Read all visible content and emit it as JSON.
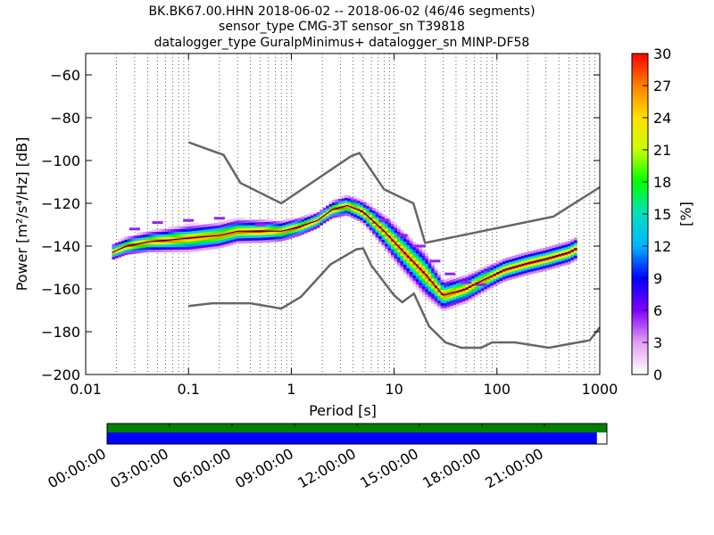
{
  "title_lines": [
    "BK.BK67.00.HHN   2018-06-02 -- 2018-06-02  (46/46 segments)",
    "sensor_type CMG-3T sensor_sn T39818",
    "datalogger_type GuralpMinimus+ datalogger_sn MINP-DF58"
  ],
  "chart_data": [
    {
      "type": "heatmap",
      "xlabel": "Period [s]",
      "ylabel": "Power [m²/s⁴/Hz] [dB]",
      "x_scale": "log",
      "xlim": [
        0.01,
        1000
      ],
      "ylim": [
        -200,
        -50
      ],
      "x_tick_values": [
        0.01,
        0.1,
        1,
        10,
        100,
        1000
      ],
      "x_tick_labels": [
        "0.01",
        "0.1",
        "1",
        "10",
        "100",
        "1000"
      ],
      "y_ticks": [
        -200,
        -180,
        -160,
        -140,
        -120,
        -100,
        -80,
        -60
      ],
      "grid": "dotted vertical",
      "colorbar": {
        "label": "[%]",
        "min": 0,
        "max": 30,
        "ticks": [
          0,
          3,
          6,
          9,
          12,
          15,
          18,
          21,
          24,
          27,
          30
        ],
        "colormap": "pqlx"
      },
      "reference_curves": [
        {
          "name": "upper",
          "color": "#666666",
          "points": [
            [
              0.1,
              -91.5
            ],
            [
              0.22,
              -97.4
            ],
            [
              0.32,
              -110.5
            ],
            [
              0.8,
              -120.0
            ],
            [
              3.8,
              -98.0
            ],
            [
              4.6,
              -96.5
            ],
            [
              8,
              -113.5
            ],
            [
              15.4,
              -120.0
            ],
            [
              20,
              -138.5
            ],
            [
              354,
              -126.2
            ],
            [
              1000,
              -112.5
            ]
          ]
        },
        {
          "name": "lower",
          "color": "#666666",
          "points": [
            [
              0.1,
              -168.0
            ],
            [
              0.17,
              -166.7
            ],
            [
              0.4,
              -166.7
            ],
            [
              0.8,
              -169.2
            ],
            [
              1.24,
              -163.7
            ],
            [
              2.4,
              -148.6
            ],
            [
              4.3,
              -141.5
            ],
            [
              5,
              -141.1
            ],
            [
              6,
              -149.0
            ],
            [
              10,
              -163.0
            ],
            [
              12,
              -166.2
            ],
            [
              15.6,
              -162.2
            ],
            [
              21.9,
              -177.5
            ],
            [
              31.6,
              -185.0
            ],
            [
              45,
              -187.5
            ],
            [
              70,
              -187.5
            ],
            [
              90,
              -185.0
            ],
            [
              150,
              -185.0
            ],
            [
              320,
              -187.5
            ],
            [
              800,
              -184.0
            ],
            [
              1000,
              -178.0
            ]
          ]
        }
      ],
      "mode_curve": {
        "color": "#000000",
        "points": [
          [
            0.018,
            -143
          ],
          [
            0.025,
            -140
          ],
          [
            0.04,
            -138
          ],
          [
            0.07,
            -137
          ],
          [
            0.12,
            -136
          ],
          [
            0.2,
            -135
          ],
          [
            0.3,
            -133
          ],
          [
            0.5,
            -133
          ],
          [
            0.8,
            -133
          ],
          [
            1.2,
            -131
          ],
          [
            1.8,
            -128
          ],
          [
            2.5,
            -123
          ],
          [
            3.5,
            -121
          ],
          [
            5,
            -124
          ],
          [
            8,
            -133
          ],
          [
            12,
            -142
          ],
          [
            20,
            -153
          ],
          [
            30,
            -163
          ],
          [
            50,
            -160
          ],
          [
            80,
            -155
          ],
          [
            120,
            -151
          ],
          [
            200,
            -148
          ],
          [
            300,
            -146
          ],
          [
            500,
            -143
          ],
          [
            600,
            -141
          ]
        ]
      },
      "density_band": {
        "center_points": [
          [
            0.018,
            -143
          ],
          [
            0.025,
            -140
          ],
          [
            0.04,
            -138
          ],
          [
            0.07,
            -137
          ],
          [
            0.12,
            -136
          ],
          [
            0.2,
            -135
          ],
          [
            0.3,
            -133
          ],
          [
            0.5,
            -133
          ],
          [
            0.8,
            -133
          ],
          [
            1.2,
            -131
          ],
          [
            1.8,
            -128
          ],
          [
            2.5,
            -123
          ],
          [
            3.5,
            -121
          ],
          [
            5,
            -124
          ],
          [
            8,
            -133
          ],
          [
            12,
            -142
          ],
          [
            20,
            -153
          ],
          [
            30,
            -163
          ],
          [
            50,
            -160
          ],
          [
            80,
            -155
          ],
          [
            120,
            -151
          ],
          [
            200,
            -148
          ],
          [
            300,
            -146
          ],
          [
            500,
            -143
          ],
          [
            600,
            -141
          ]
        ],
        "width_db": [
          [
            0.018,
            4
          ],
          [
            0.1,
            7
          ],
          [
            0.5,
            6
          ],
          [
            2,
            4
          ],
          [
            5,
            6
          ],
          [
            10,
            10
          ],
          [
            20,
            12
          ],
          [
            30,
            8
          ],
          [
            100,
            6
          ],
          [
            600,
            6
          ]
        ],
        "outlier_cloud": [
          [
            0.03,
            -132
          ],
          [
            0.05,
            -129
          ],
          [
            0.1,
            -128
          ],
          [
            0.2,
            -127
          ],
          [
            0.5,
            -130
          ],
          [
            8,
            -128
          ],
          [
            12,
            -135
          ],
          [
            18,
            -140
          ],
          [
            25,
            -147
          ],
          [
            35,
            -153
          ],
          [
            50,
            -157
          ],
          [
            70,
            -158
          ]
        ]
      },
      "timeline": {
        "tick_labels": [
          "00:00:00",
          "03:00:00",
          "06:00:00",
          "09:00:00",
          "12:00:00",
          "15:00:00",
          "18:00:00",
          "21:00:00"
        ],
        "bars": [
          {
            "name": "data-available",
            "color": "#008000",
            "coverage": 1.0
          },
          {
            "name": "segments",
            "color": "#0000ff",
            "coverage": 0.98
          }
        ]
      }
    }
  ]
}
